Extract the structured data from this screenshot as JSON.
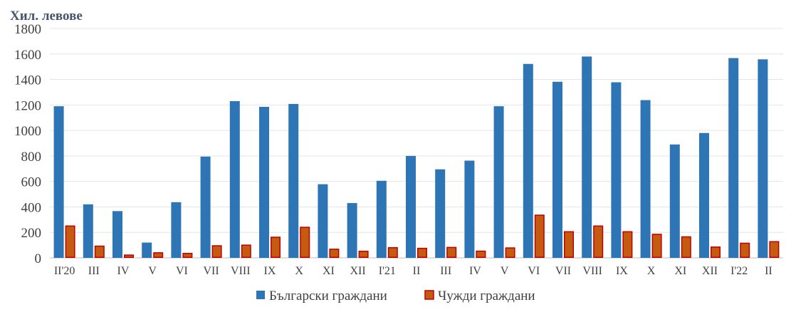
{
  "chart_data": {
    "type": "bar",
    "ylabel": "Хил. левове",
    "ylim": [
      0,
      1800
    ],
    "yticks": [
      0,
      200,
      400,
      600,
      800,
      1000,
      1200,
      1400,
      1600,
      1800
    ],
    "grid": true,
    "legend_position": "bottom",
    "categories": [
      "II'20",
      "III",
      "IV",
      "V",
      "VI",
      "VII",
      "VIII",
      "IX",
      "X",
      "XI",
      "XII",
      "I'21",
      "II",
      "III",
      "IV",
      "V",
      "VI",
      "VII",
      "VIII",
      "IX",
      "X",
      "XI",
      "XII",
      "I'22",
      "II"
    ],
    "series": [
      {
        "name": "Български граждани",
        "color": "#2e75b6",
        "values": [
          1190,
          420,
          367,
          120,
          437,
          795,
          1230,
          1185,
          1208,
          578,
          430,
          605,
          800,
          695,
          763,
          1190,
          1522,
          1382,
          1580,
          1378,
          1238,
          890,
          980,
          1568,
          1558
        ]
      },
      {
        "name": "Чужди граждани",
        "color": "#c55a11",
        "edge": "#c00000",
        "values": [
          250,
          92,
          22,
          40,
          35,
          95,
          100,
          162,
          240,
          68,
          52,
          80,
          75,
          82,
          53,
          78,
          335,
          205,
          250,
          205,
          185,
          165,
          85,
          115,
          127
        ]
      }
    ]
  }
}
